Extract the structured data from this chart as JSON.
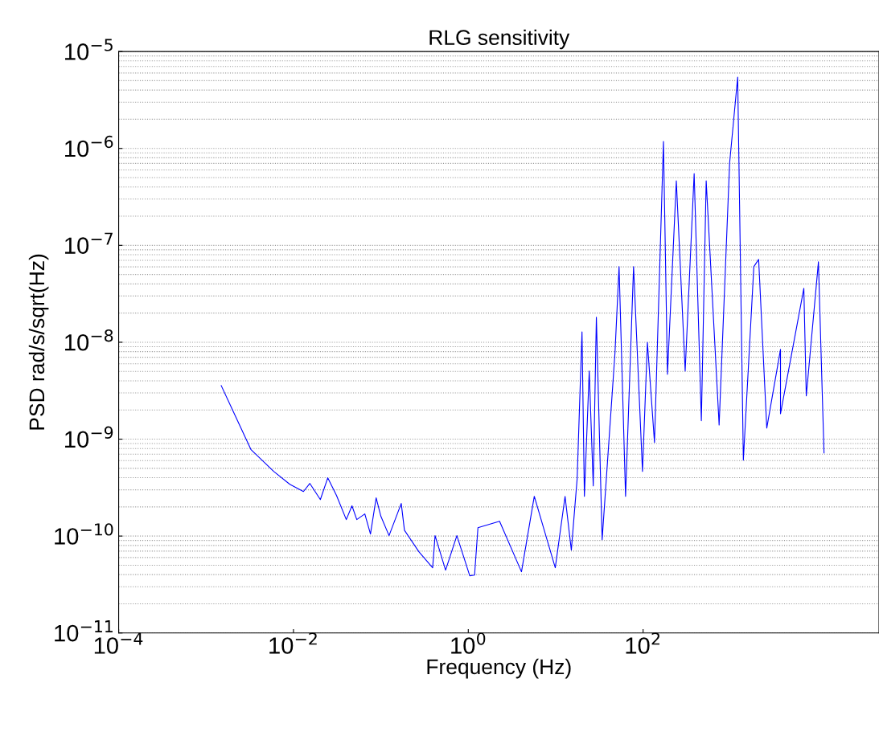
{
  "chart_data": {
    "type": "line",
    "title": "RLG sensitivity",
    "xlabel": "Frequency (Hz)",
    "ylabel": "PSD rad/s/sqrt(Hz)",
    "log": "xy",
    "grid": "y",
    "marker": "none",
    "line_style": "solid",
    "xlim": [
      0.0001,
      50000
    ],
    "ylim": [
      1e-11,
      1e-05
    ],
    "xticks": [
      {
        "value": 0.0001,
        "label": "10$^{−4}$"
      },
      {
        "value": 0.01,
        "label": "10$^{−2}$"
      },
      {
        "value": 1,
        "label": "10$^{0}$"
      },
      {
        "value": 100,
        "label": "10$^{2}$"
      }
    ],
    "yticks": [
      {
        "value": 1e-11,
        "label": "10$^{−11}$"
      },
      {
        "value": 1e-10,
        "label": "10$^{−10}$"
      },
      {
        "value": 1e-09,
        "label": "10$^{−9}$"
      },
      {
        "value": 1e-08,
        "label": "10$^{−8}$"
      },
      {
        "value": 1e-07,
        "label": "10$^{−7}$"
      },
      {
        "value": 1e-06,
        "label": "10$^{−6}$"
      },
      {
        "value": 1e-05,
        "label": "10$^{−5}$"
      }
    ],
    "series": [
      {
        "color": "#0000ff",
        "x": [
          0.00149,
          0.00327,
          0.00593,
          0.00908,
          0.013,
          0.0154,
          0.0203,
          0.0247,
          0.0311,
          0.0402,
          0.0467,
          0.053,
          0.0655,
          0.076,
          0.0883,
          0.1,
          0.124,
          0.171,
          0.186,
          0.272,
          0.391,
          0.417,
          0.55,
          0.74,
          1.04,
          1.18,
          1.29,
          2.28,
          4.06,
          5.69,
          9.89,
          12.8,
          15.1,
          17.6,
          20.0,
          21.3,
          24.2,
          26.9,
          29.2,
          34.0,
          47.7,
          53.1,
          63.0,
          77.8,
          98.4,
          112,
          135,
          171,
          190,
          240,
          303,
          384,
          464,
          527,
          741,
          977,
          1208,
          1403,
          1849,
          2099,
          2600,
          3733,
          3733,
          6902,
          7362,
          10140,
          11270,
          11750
        ],
        "values": [
          3.57e-09,
          7.78e-10,
          4.65e-10,
          3.42e-10,
          2.88e-10,
          3.49e-10,
          2.38e-10,
          3.99e-10,
          2.62e-10,
          1.48e-10,
          2.05e-10,
          1.48e-10,
          1.69e-10,
          1.05e-10,
          2.48e-10,
          1.6e-10,
          1.01e-10,
          2.17e-10,
          1.15e-10,
          6.89e-11,
          4.71e-11,
          1.01e-10,
          4.45e-11,
          1.01e-10,
          3.89e-11,
          3.96e-11,
          1.22e-10,
          1.42e-10,
          4.28e-11,
          2.57e-10,
          4.71e-11,
          2.57e-10,
          7.16e-11,
          3.91e-10,
          1.28e-08,
          2.57e-10,
          5.04e-09,
          3.3e-10,
          1.81e-08,
          9.18e-11,
          7.82e-09,
          6.03e-08,
          2.57e-10,
          6.03e-08,
          4.65e-10,
          1e-08,
          9.23e-10,
          1.18e-06,
          4.67e-09,
          4.63e-07,
          5.04e-09,
          5.5e-07,
          1.55e-09,
          4.63e-07,
          1.4e-09,
          7.05e-07,
          5.43e-06,
          6.07e-10,
          6.03e-08,
          7.15e-08,
          1.3e-09,
          8.43e-09,
          1.83e-09,
          3.6e-08,
          2.79e-09,
          6.75e-08,
          2.54e-09,
          7.2e-10
        ]
      }
    ]
  }
}
